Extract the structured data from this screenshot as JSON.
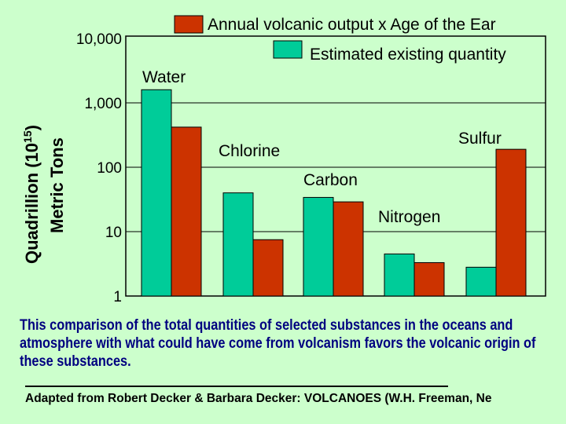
{
  "chart_data": {
    "type": "bar",
    "scale": "log",
    "ylim": [
      1,
      10000
    ],
    "yticks": [
      "1",
      "10",
      "100",
      "1,000",
      "10,000"
    ],
    "ylabel_line1": "Quadrillion (10",
    "ylabel_exp": "15",
    "ylabel_close": ")",
    "ylabel_line2": "Metric Tons",
    "categories": [
      "Water",
      "Chlorine",
      "Carbon",
      "Nitrogen",
      "Sulfur"
    ],
    "series": [
      {
        "name": "Estimated existing quantity",
        "color": "#00cc99",
        "values": [
          1600,
          40,
          34,
          4.5,
          2.8
        ]
      },
      {
        "name": "Annual volcanic output x Age of the Ear",
        "color": "#cc3300",
        "values": [
          420,
          7.5,
          29,
          3.3,
          190
        ]
      }
    ],
    "legend_position": "top-right"
  },
  "caption": "This comparison of the total quantities of selected substances in the oceans and atmosphere with what could have come from volcanism favors the volcanic origin of these substances.",
  "credit": "Adapted from Robert Decker & Barbara Decker: VOLCANOES (W.H. Freeman, Ne"
}
